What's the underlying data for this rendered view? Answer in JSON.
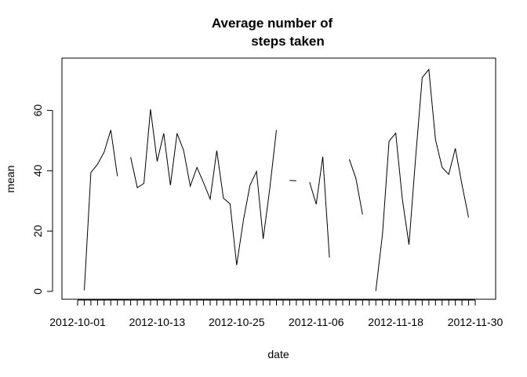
{
  "chart_data": {
    "type": "line",
    "title_lines": [
      "Average number of",
      "steps taken"
    ],
    "xlabel": "date",
    "ylabel": "mean",
    "x_tick_labels": [
      "2012-10-01",
      "2012-10-13",
      "2012-10-25",
      "2012-11-06",
      "2012-11-18",
      "2012-11-30"
    ],
    "y_ticks": [
      0,
      20,
      40,
      60
    ],
    "ylim": [
      0,
      75
    ],
    "grid": false,
    "legend": "none",
    "line_color": "#000000",
    "series": [
      {
        "x": [
          "2012-10-01",
          "2012-10-02",
          "2012-10-03",
          "2012-10-04",
          "2012-10-05",
          "2012-10-06",
          "2012-10-07",
          "2012-10-08",
          "2012-10-09",
          "2012-10-10",
          "2012-10-11",
          "2012-10-12",
          "2012-10-13",
          "2012-10-14",
          "2012-10-15",
          "2012-10-16",
          "2012-10-17",
          "2012-10-18",
          "2012-10-19",
          "2012-10-20",
          "2012-10-21",
          "2012-10-22",
          "2012-10-23",
          "2012-10-24",
          "2012-10-25",
          "2012-10-26",
          "2012-10-27",
          "2012-10-28",
          "2012-10-29",
          "2012-10-30",
          "2012-10-31",
          "2012-11-01",
          "2012-11-02",
          "2012-11-03",
          "2012-11-04",
          "2012-11-05",
          "2012-11-06",
          "2012-11-07",
          "2012-11-08",
          "2012-11-09",
          "2012-11-10",
          "2012-11-11",
          "2012-11-12",
          "2012-11-13",
          "2012-11-14",
          "2012-11-15",
          "2012-11-16",
          "2012-11-17",
          "2012-11-18",
          "2012-11-19",
          "2012-11-20",
          "2012-11-21",
          "2012-11-22",
          "2012-11-23",
          "2012-11-24",
          "2012-11-25",
          "2012-11-26",
          "2012-11-27",
          "2012-11-28",
          "2012-11-29",
          "2012-11-30"
        ],
        "values": [
          null,
          0.4,
          39.4,
          42.1,
          46.2,
          53.5,
          38.2,
          null,
          44.5,
          34.4,
          35.8,
          60.4,
          43.1,
          52.4,
          35.2,
          52.4,
          46.7,
          34.9,
          41.1,
          36.1,
          30.6,
          46.7,
          30.9,
          29.0,
          8.7,
          23.5,
          35.1,
          39.8,
          17.4,
          34.1,
          53.5,
          null,
          36.8,
          36.7,
          null,
          36.2,
          28.9,
          44.7,
          11.2,
          null,
          null,
          43.8,
          37.4,
          25.5,
          null,
          0.1,
          18.9,
          49.8,
          52.5,
          30.7,
          15.5,
          44.4,
          70.9,
          73.6,
          50.3,
          41.1,
          38.8,
          47.4,
          35.4,
          24.5,
          null
        ]
      }
    ]
  }
}
